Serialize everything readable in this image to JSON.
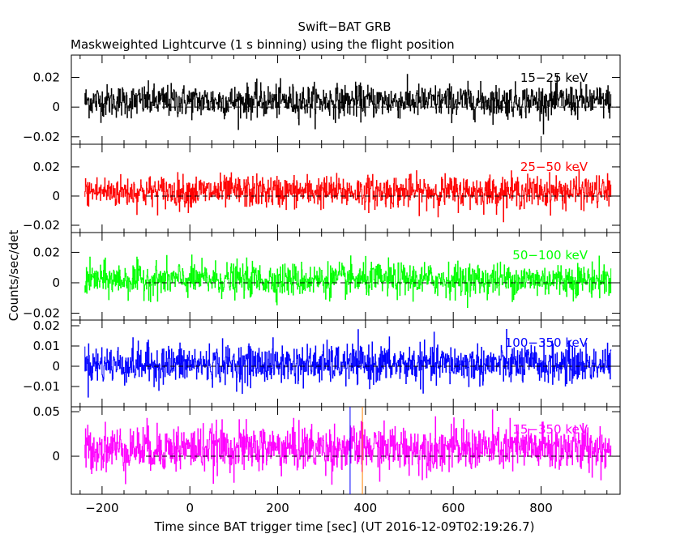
{
  "title": "Swift−BAT GRB",
  "subtitle": "Maskweighted Lightcurve (1 s binning) using the flight position",
  "chart_data": {
    "type": "line",
    "title": "Swift−BAT GRB",
    "subtitle": "Maskweighted Lightcurve (1 s binning) using the flight position",
    "xlabel": "Time since BAT trigger time [sec] (UT 2016-12-09T02:19:26.7)",
    "ylabel": "Counts/sec/det",
    "xlim": [
      -270,
      980
    ],
    "x_ticks": [
      -200,
      0,
      200,
      400,
      600,
      800
    ],
    "x_tick_labels": [
      "−200",
      "0",
      "200",
      "400",
      "600",
      "800"
    ],
    "bin_size_sec": 1,
    "data_time_range": [
      -240,
      960
    ],
    "vertical_markers": [
      {
        "t": 365,
        "color": "#0000ff"
      },
      {
        "t": 393,
        "color": "#ff8000"
      }
    ],
    "series": [
      {
        "name": "15−25 keV",
        "color": "#000000",
        "ylim": [
          -0.025,
          0.035
        ],
        "mean": 0.004,
        "std": 0.0055,
        "y_ticks": [
          -0.02,
          0,
          0.02
        ],
        "y_tick_labels": [
          "−0.02",
          "0",
          "0.02"
        ]
      },
      {
        "name": "25−50 keV",
        "color": "#ff0000",
        "ylim": [
          -0.025,
          0.0355
        ],
        "mean": 0.003,
        "std": 0.0055,
        "y_ticks": [
          -0.02,
          0,
          0.02
        ],
        "y_tick_labels": [
          "−0.02",
          "0",
          "0.02"
        ]
      },
      {
        "name": "50−100 keV",
        "color": "#00ff00",
        "ylim": [
          -0.0245,
          0.033
        ],
        "mean": 0.002,
        "std": 0.0055,
        "y_ticks": [
          -0.02,
          0,
          0.02
        ],
        "y_tick_labels": [
          "−0.02",
          "0",
          "0.02"
        ]
      },
      {
        "name": "100−350 keV",
        "color": "#0000ff",
        "ylim": [
          -0.02,
          0.0228
        ],
        "mean": 0.001,
        "std": 0.0048,
        "y_ticks": [
          -0.01,
          0,
          0.01,
          0.02
        ],
        "y_tick_labels": [
          "−0.01",
          "0",
          "0.01",
          "0.02"
        ]
      },
      {
        "name": "15−350 keV",
        "color": "#ff00ff",
        "ylim": [
          -0.0427,
          0.0555
        ],
        "mean": 0.009,
        "std": 0.013,
        "y_ticks": [
          0,
          0.05
        ],
        "y_tick_labels": [
          "0",
          "0.05"
        ]
      }
    ]
  }
}
